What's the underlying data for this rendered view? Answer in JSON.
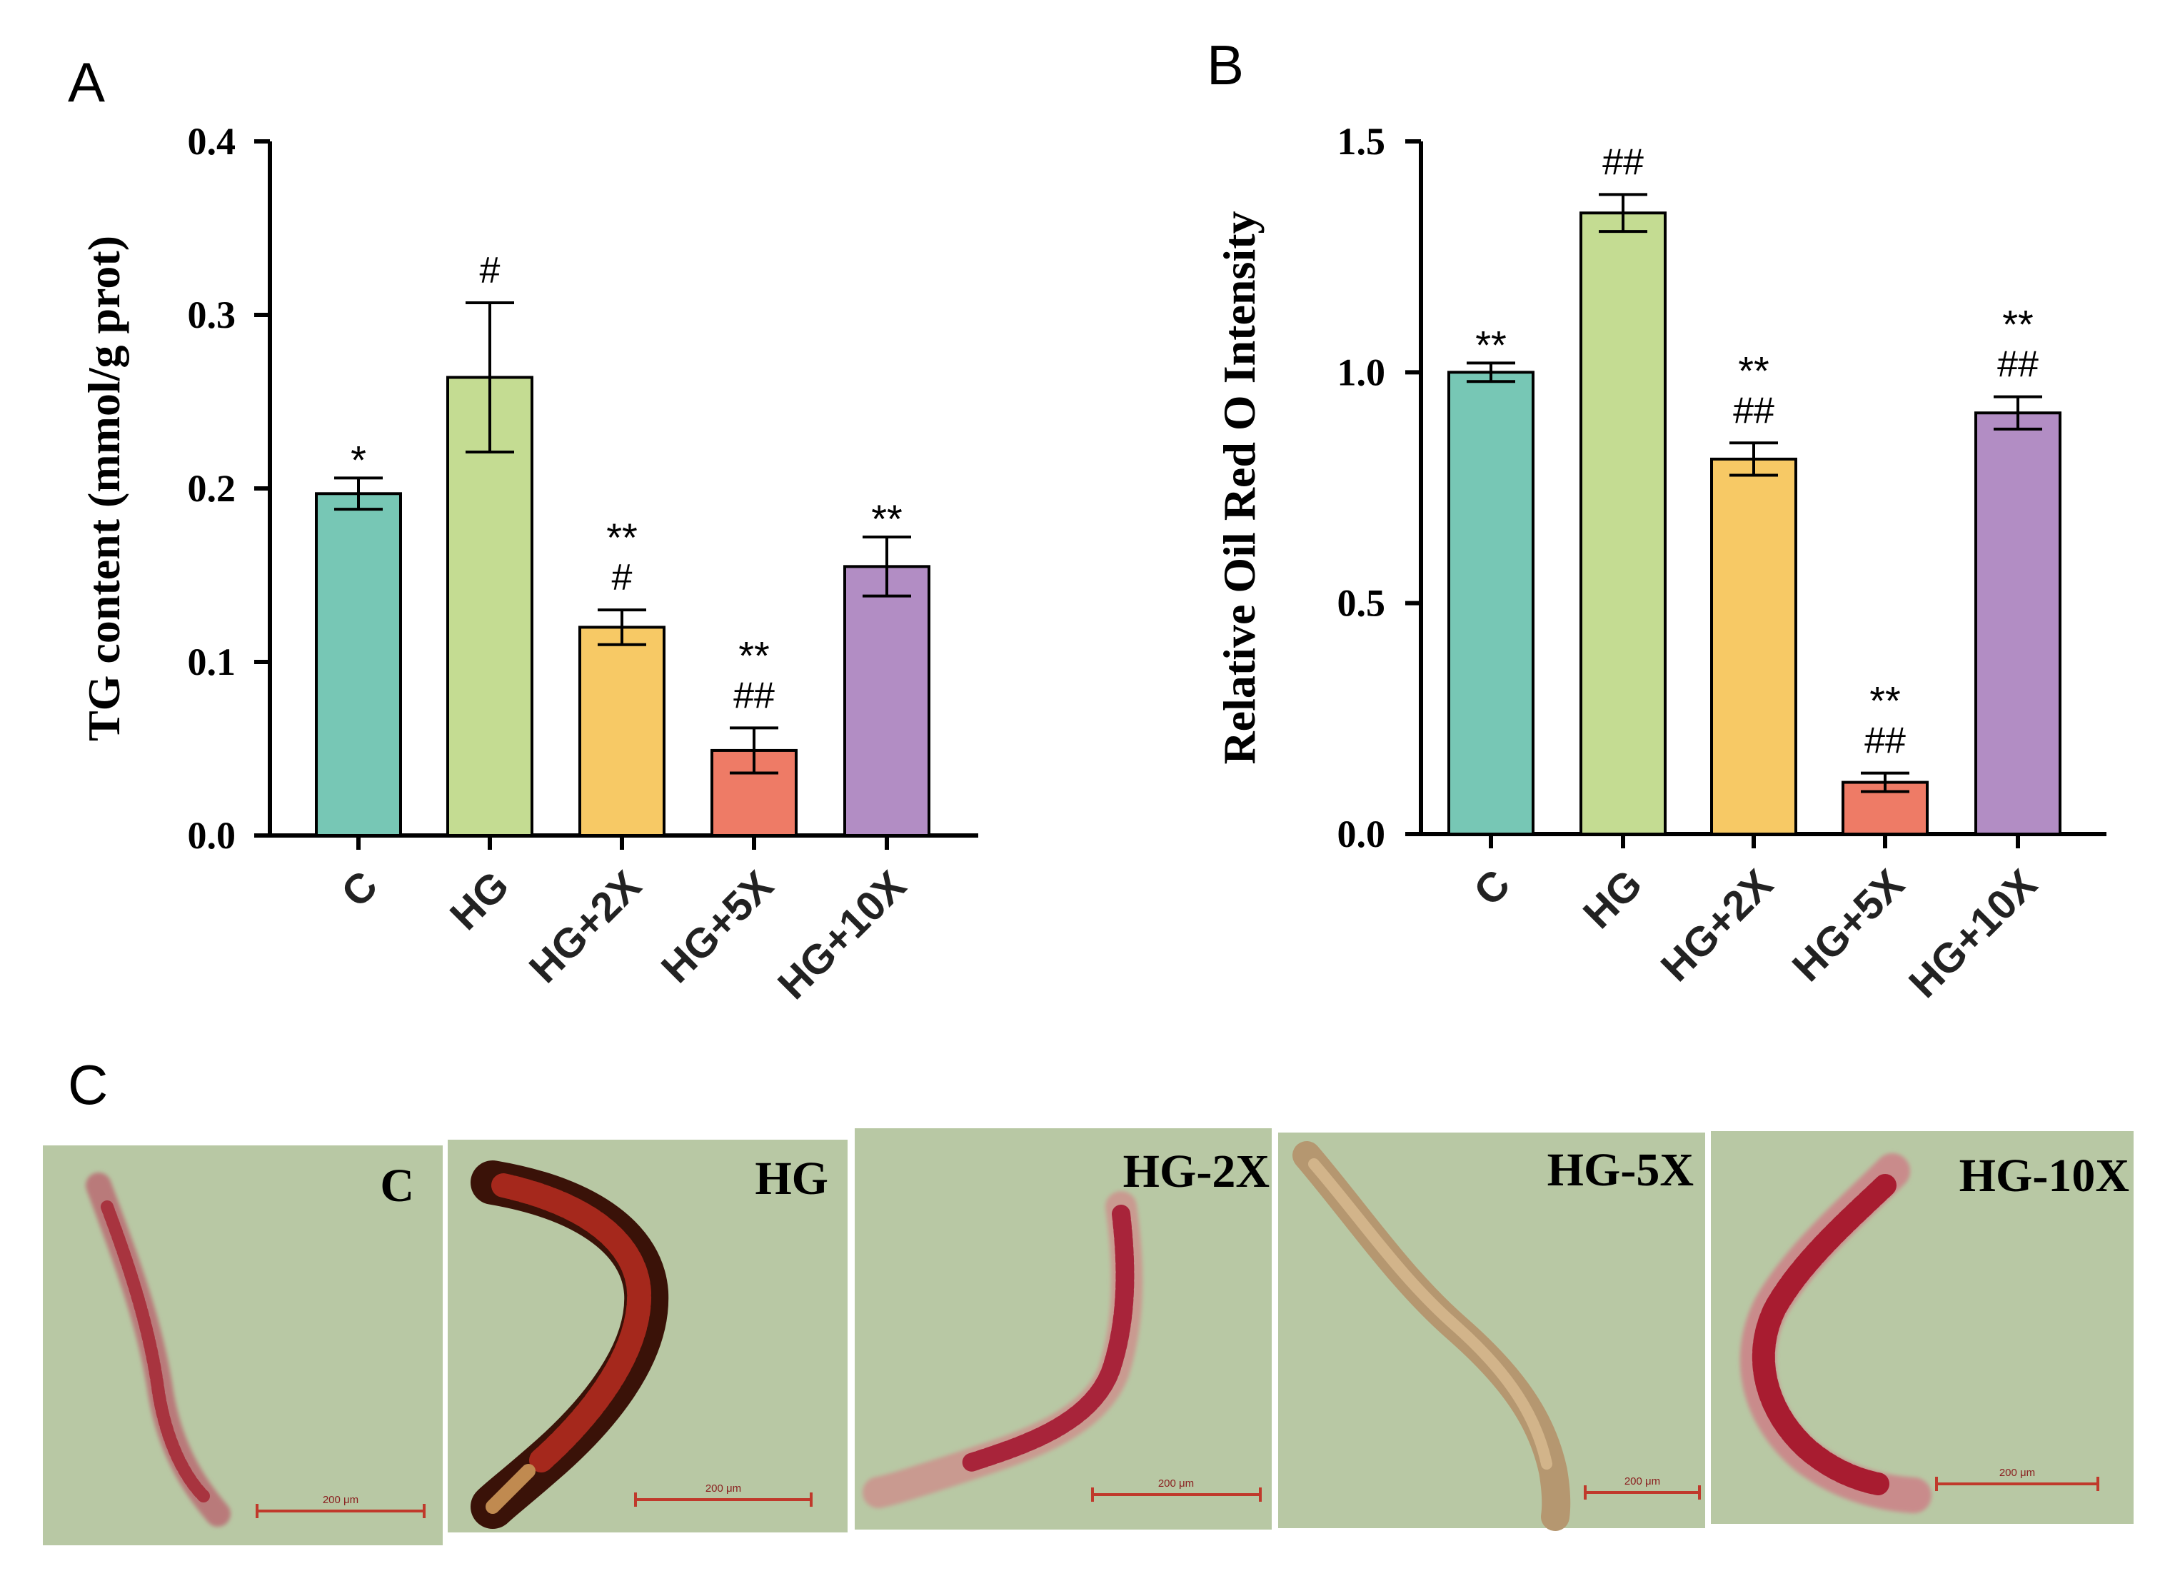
{
  "panel_labels": {
    "a": "A",
    "b": "B",
    "c": "C"
  },
  "colors": {
    "C": "#77c7b5",
    "HG": "#c4dc92",
    "HG+2X": "#f7c965",
    "HG+5X": "#ee7b66",
    "HG+10X": "#b28dc4",
    "panel_bg": "#b8c8a4"
  },
  "chart_data": [
    {
      "id": "A",
      "type": "bar",
      "title": "",
      "xlabel": "",
      "ylabel": "TG content (mmol/g prot)",
      "ylim": [
        0,
        0.4
      ],
      "yticks": [
        "0.0",
        "0.1",
        "0.2",
        "0.3",
        "0.4"
      ],
      "categories": [
        "C",
        "HG",
        "HG+2X",
        "HG+5X",
        "HG+10X"
      ],
      "values": [
        0.197,
        0.264,
        0.12,
        0.049,
        0.155
      ],
      "errors": [
        0.009,
        0.043,
        0.01,
        0.013,
        0.017
      ],
      "annotations": [
        [
          "*"
        ],
        [
          "#"
        ],
        [
          "**",
          "#"
        ],
        [
          "**",
          "##"
        ],
        [
          "**"
        ]
      ]
    },
    {
      "id": "B",
      "type": "bar",
      "title": "",
      "xlabel": "",
      "ylabel": "Relative Oil Red O Intensity",
      "ylim": [
        0,
        1.5
      ],
      "yticks": [
        "0.0",
        "0.5",
        "1.0",
        "1.5"
      ],
      "categories": [
        "C",
        "HG",
        "HG+2X",
        "HG+5X",
        "HG+10X"
      ],
      "values": [
        1.0,
        1.345,
        0.812,
        0.112,
        0.912
      ],
      "errors": [
        0.02,
        0.04,
        0.035,
        0.02,
        0.035
      ],
      "annotations": [
        [
          "**"
        ],
        [
          "##"
        ],
        [
          "**",
          "##"
        ],
        [
          "**",
          "##"
        ],
        [
          "**",
          "##"
        ]
      ]
    }
  ],
  "micrographs": [
    {
      "label": "C",
      "scale": "200 μm",
      "stain": "light"
    },
    {
      "label": "HG",
      "scale": "200 μm",
      "stain": "dark"
    },
    {
      "label": "HG-2X",
      "scale": "200 μm",
      "stain": "medium"
    },
    {
      "label": "HG-5X",
      "scale": "200 μm",
      "stain": "none"
    },
    {
      "label": "HG-10X",
      "scale": "200 μm",
      "stain": "medium"
    }
  ]
}
